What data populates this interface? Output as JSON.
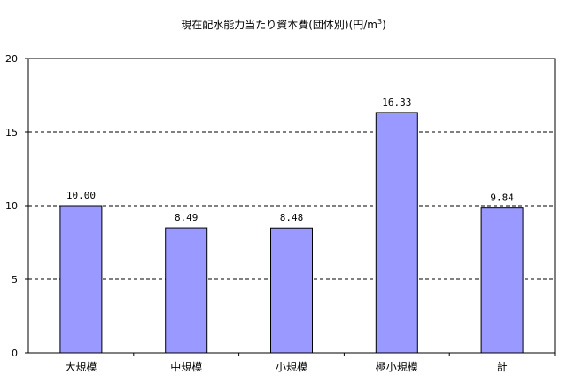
{
  "chart_data": {
    "type": "bar",
    "title": "現在配水能力当たり資本費(団体別)(円/m",
    "title_superscript": "3",
    "title_suffix": ")",
    "categories": [
      "大規模",
      "中規模",
      "小規模",
      "極小規模",
      "計"
    ],
    "values": [
      10.0,
      8.49,
      8.48,
      16.33,
      9.84
    ],
    "data_labels": [
      "10.00",
      "8.49",
      "8.48",
      "16.33",
      "9.84"
    ],
    "ylim": [
      0,
      20
    ],
    "yticks": [
      "0",
      "5",
      "10",
      "15",
      "20"
    ],
    "grid": true,
    "legend": false,
    "colors": {
      "bar_fill": "#9999ff",
      "bar_stroke": "#000000",
      "grid": "#000000"
    }
  }
}
